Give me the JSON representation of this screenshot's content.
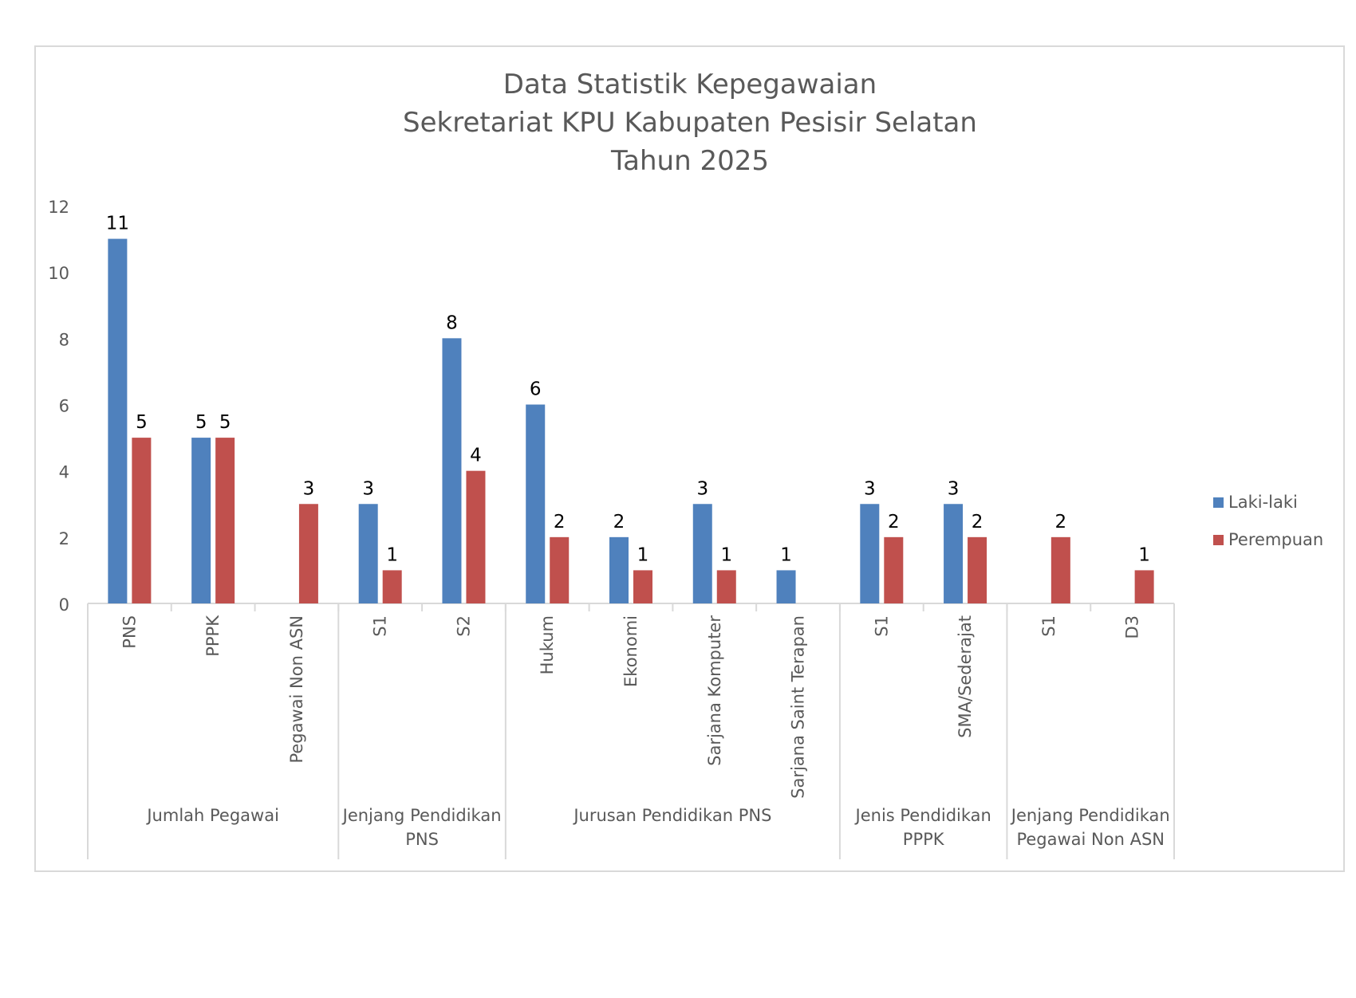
{
  "chart_data": {
    "type": "bar",
    "title": [
      "Data Statistik Kepegawaian",
      "Sekretariat KPU Kabupaten Pesisir Selatan",
      "Tahun 2025"
    ],
    "xlabel": "",
    "ylabel": "",
    "ylim": [
      0,
      12
    ],
    "yticks": [
      "0",
      "2",
      "4",
      "6",
      "8",
      "10",
      "12"
    ],
    "grid": false,
    "legend_position": "right",
    "groups": [
      {
        "label": [
          "Jumlah Pegawai"
        ],
        "categories": [
          "PNS",
          "PPPK",
          "Pegawai Non ASN"
        ]
      },
      {
        "label": [
          "Jenjang Pendidikan",
          "PNS"
        ],
        "categories": [
          "S1",
          "S2"
        ]
      },
      {
        "label": [
          "Jurusan Pendidikan PNS"
        ],
        "categories": [
          "Hukum",
          "Ekonomi",
          "Sarjana Komputer",
          "Sarjana Saint Terapan"
        ]
      },
      {
        "label": [
          "Jenis Pendidikan",
          "PPPK"
        ],
        "categories": [
          "S1",
          "SMA/Sederajat"
        ]
      },
      {
        "label": [
          "Jenjang Pendidikan",
          "Pegawai Non ASN"
        ],
        "categories": [
          "S1",
          "D3"
        ]
      }
    ],
    "categories": [
      "PNS",
      "PPPK",
      "Pegawai Non ASN",
      "S1",
      "S2",
      "Hukum",
      "Ekonomi",
      "Sarjana Komputer",
      "Sarjana Saint Terapan",
      "S1",
      "SMA/Sederajat",
      "S1",
      "D3"
    ],
    "series": [
      {
        "name": "Laki-laki",
        "color": "#4F81BD",
        "values": [
          11,
          5,
          null,
          3,
          8,
          6,
          2,
          3,
          1,
          3,
          3,
          null,
          null
        ]
      },
      {
        "name": "Perempuan",
        "color": "#C0504D",
        "values": [
          5,
          5,
          3,
          1,
          4,
          2,
          1,
          1,
          null,
          2,
          2,
          2,
          1
        ]
      }
    ]
  }
}
